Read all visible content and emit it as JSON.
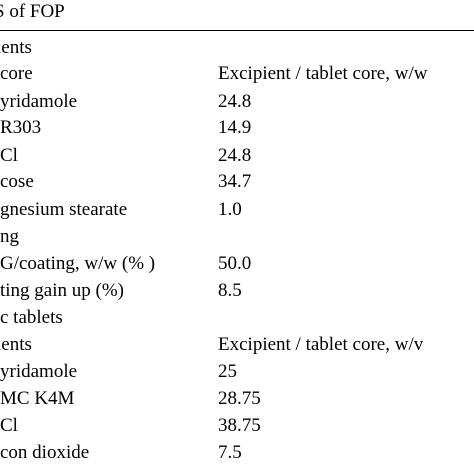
{
  "table": {
    "title": "S of FOP",
    "rows": [
      {
        "label": "ients",
        "value": ""
      },
      {
        "label": "core",
        "value": "Excipient / tablet core, w/w"
      },
      {
        "label": "yridamole",
        "value": "24.8"
      },
      {
        "label": "R303",
        "value": "14.9"
      },
      {
        "label": "Cl",
        "value": "24.8"
      },
      {
        "label": "cose",
        "value": "34.7"
      },
      {
        "label": "gnesium stearate",
        "value": "1.0"
      },
      {
        "label": "ng",
        "value": ""
      },
      {
        "label": "G/coating, w/w (% )",
        "value": "50.0"
      },
      {
        "label": "ting gain up (%)",
        "value": "8.5"
      },
      {
        "label": "c tablets",
        "value": ""
      },
      {
        "label": "ients",
        "value": "Excipient / tablet core, w/v"
      },
      {
        "label": "yridamole",
        "value": "25"
      },
      {
        "label": "MC K4M",
        "value": "28.75"
      },
      {
        "label": "Cl",
        "value": "38.75"
      },
      {
        "label": "con dioxide",
        "value": "7.5"
      }
    ]
  }
}
